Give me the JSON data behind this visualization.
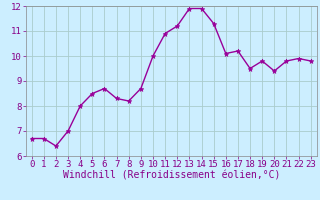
{
  "x": [
    0,
    1,
    2,
    3,
    4,
    5,
    6,
    7,
    8,
    9,
    10,
    11,
    12,
    13,
    14,
    15,
    16,
    17,
    18,
    19,
    20,
    21,
    22,
    23
  ],
  "y": [
    6.7,
    6.7,
    6.4,
    7.0,
    8.0,
    8.5,
    8.7,
    8.3,
    8.2,
    8.7,
    10.0,
    10.9,
    11.2,
    11.9,
    11.9,
    11.3,
    10.1,
    10.2,
    9.5,
    9.8,
    9.4,
    9.8,
    9.9,
    9.8
  ],
  "line_color": "#990099",
  "marker": "*",
  "marker_size": 3.5,
  "bg_color": "#cceeff",
  "grid_color": "#aacccc",
  "xlabel": "Windchill (Refroidissement éolien,°C)",
  "xlim_min": -0.5,
  "xlim_max": 23.5,
  "ylim_min": 6,
  "ylim_max": 12,
  "yticks": [
    6,
    7,
    8,
    9,
    10,
    11,
    12
  ],
  "xticks": [
    0,
    1,
    2,
    3,
    4,
    5,
    6,
    7,
    8,
    9,
    10,
    11,
    12,
    13,
    14,
    15,
    16,
    17,
    18,
    19,
    20,
    21,
    22,
    23
  ],
  "tick_fontsize": 6.5,
  "xlabel_fontsize": 7.0,
  "label_color": "#880088",
  "spine_color": "#888888",
  "linewidth": 1.0
}
